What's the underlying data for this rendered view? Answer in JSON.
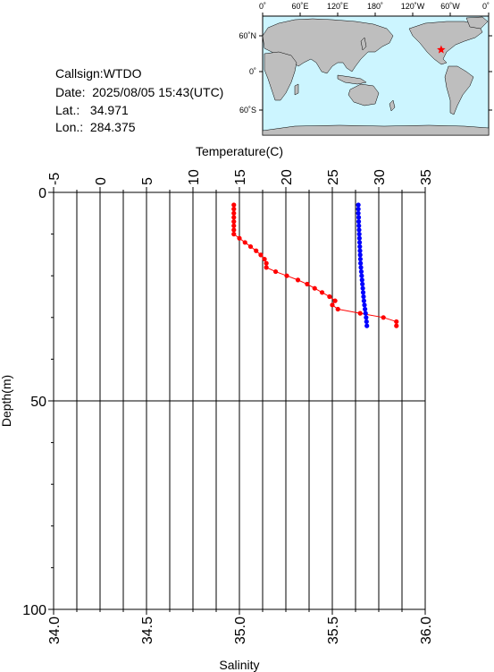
{
  "station": {
    "callsign_label": "Callsign:",
    "callsign": "WTDO",
    "date_label": "Date:",
    "date": "2025/08/05 15:43(UTC)",
    "lat_label": "Lat.:",
    "lat": "34.971",
    "lon_label": "Lon.:",
    "lon": "284.375"
  },
  "map": {
    "top_ticks": [
      "0˚",
      "60˚E",
      "120˚E",
      "180˚",
      "120˚W",
      "60˚W",
      "0˚"
    ],
    "left_ticks": [
      "60˚N",
      "0˚",
      "60˚S"
    ],
    "marker": {
      "lat": 34.971,
      "lon": 284.375
    },
    "ocean_color": "#ccf5ff",
    "land_color": "#bebebe",
    "marker_color": "#ff0000"
  },
  "chart_data": {
    "type": "scatter",
    "title": "",
    "top_axis": {
      "label": "Temperature(C)",
      "min": -5,
      "max": 35,
      "ticks": [
        "-5",
        "0",
        "5",
        "10",
        "15",
        "20",
        "25",
        "30",
        "35"
      ]
    },
    "bottom_axis": {
      "label": "Salinity",
      "min": 34.0,
      "max": 36.0,
      "ticks": [
        "34.0",
        "34.5",
        "35.0",
        "35.5",
        "36.0"
      ]
    },
    "y_axis": {
      "label": "Depth(m)",
      "min": 0,
      "max": 100,
      "inverted": true,
      "ticks": [
        "0",
        "50",
        "100"
      ]
    },
    "grid": true,
    "series": [
      {
        "color": "#ff0000",
        "axis": "temperature",
        "points": [
          [
            14.4,
            3.0
          ],
          [
            14.4,
            4.0
          ],
          [
            14.4,
            5.0
          ],
          [
            14.4,
            6.0
          ],
          [
            14.4,
            7.0
          ],
          [
            14.4,
            8.0
          ],
          [
            14.4,
            9.0
          ],
          [
            14.4,
            10.0
          ],
          [
            15.0,
            11.0
          ],
          [
            15.6,
            12.0
          ],
          [
            16.2,
            13.0
          ],
          [
            16.8,
            14.0
          ],
          [
            17.3,
            15.0
          ],
          [
            17.7,
            16.0
          ],
          [
            17.9,
            17.0
          ],
          [
            17.9,
            18.0
          ],
          [
            18.9,
            19.0
          ],
          [
            20.1,
            20.0
          ],
          [
            21.3,
            21.0
          ],
          [
            22.3,
            22.0
          ],
          [
            23.1,
            23.0
          ],
          [
            23.9,
            24.0
          ],
          [
            24.7,
            25.0
          ],
          [
            25.3,
            26.0
          ],
          [
            25.0,
            27.0
          ],
          [
            25.6,
            28.0
          ],
          [
            28.0,
            29.0
          ],
          [
            30.5,
            30.0
          ],
          [
            31.9,
            31.0
          ],
          [
            31.9,
            32.0
          ]
        ]
      },
      {
        "color": "#0000ff",
        "axis": "salinity",
        "points": [
          [
            35.64,
            3.0
          ],
          [
            35.64,
            4.0
          ],
          [
            35.64,
            5.0
          ],
          [
            35.642,
            6.0
          ],
          [
            35.642,
            7.0
          ],
          [
            35.643,
            8.0
          ],
          [
            35.644,
            9.0
          ],
          [
            35.645,
            10.0
          ],
          [
            35.646,
            11.0
          ],
          [
            35.647,
            12.0
          ],
          [
            35.648,
            13.0
          ],
          [
            35.649,
            14.0
          ],
          [
            35.65,
            15.0
          ],
          [
            35.651,
            16.0
          ],
          [
            35.652,
            17.0
          ],
          [
            35.654,
            18.0
          ],
          [
            35.656,
            19.0
          ],
          [
            35.658,
            20.0
          ],
          [
            35.66,
            21.0
          ],
          [
            35.662,
            22.0
          ],
          [
            35.664,
            23.0
          ],
          [
            35.666,
            24.0
          ],
          [
            35.668,
            25.0
          ],
          [
            35.67,
            26.0
          ],
          [
            35.673,
            27.0
          ],
          [
            35.676,
            28.0
          ],
          [
            35.679,
            29.0
          ],
          [
            35.682,
            30.0
          ],
          [
            35.684,
            31.0
          ],
          [
            35.686,
            32.0
          ]
        ]
      }
    ]
  }
}
